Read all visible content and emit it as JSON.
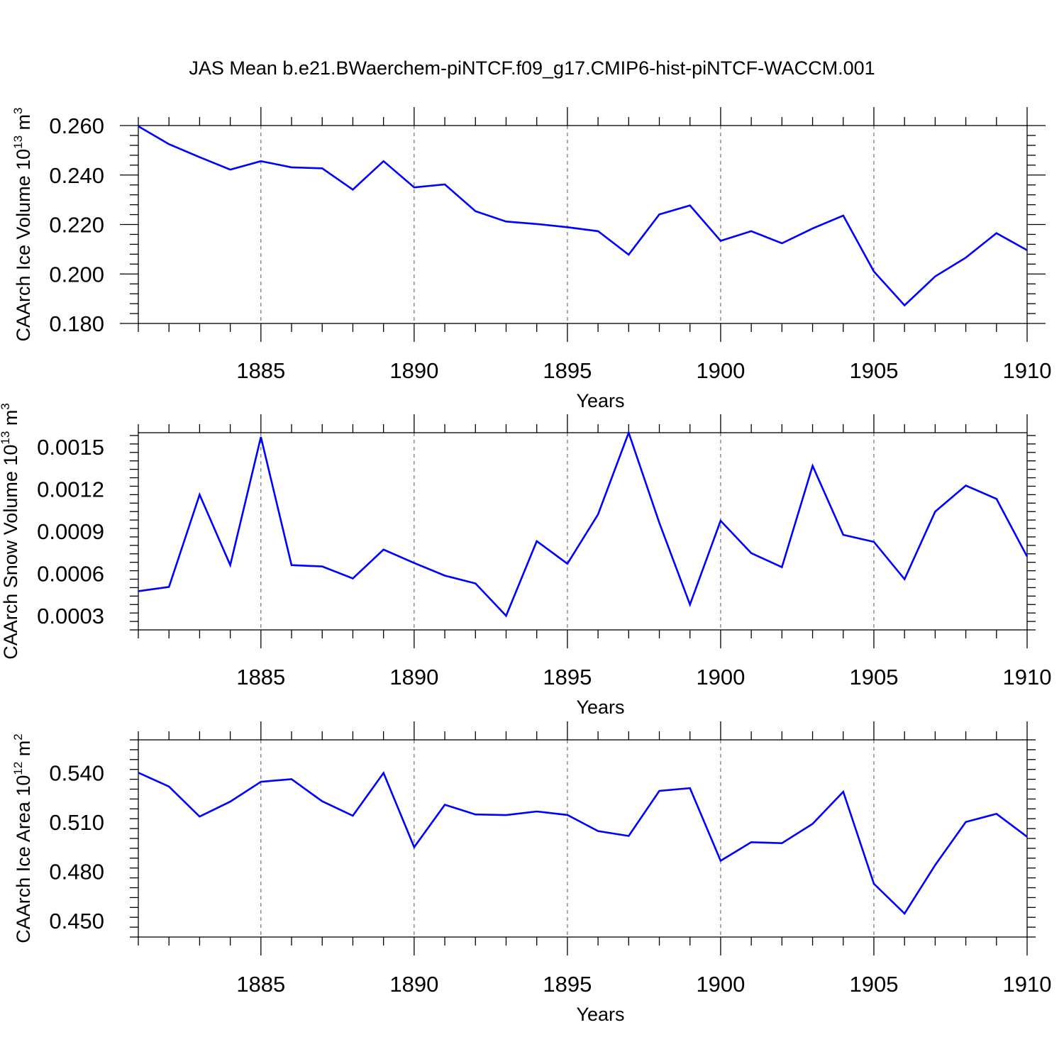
{
  "title": "JAS Mean b.e21.BWaerchem-piNTCF.f09_g17.CMIP6-hist-piNTCF-WACCM.001",
  "colors": {
    "line": "#0000ff",
    "axis": "#000000",
    "grid": "#555555"
  },
  "chart_data": [
    {
      "type": "line",
      "ylabel": {
        "main": "CAArch Ice Volume 10",
        "exp": "13",
        "unit": " m",
        "unit_exp": "3"
      },
      "xlabel": "Years",
      "xlim": [
        1881,
        1910
      ],
      "ylim": [
        0.18,
        0.26
      ],
      "y_ticks": [
        0.18,
        0.2,
        0.22,
        0.24,
        0.26
      ],
      "y_tick_labels": [
        "0.180",
        "0.200",
        "0.220",
        "0.240",
        "0.260"
      ],
      "x_ticks": [
        1885,
        1890,
        1895,
        1900,
        1905,
        1910
      ],
      "x_tick_labels": [
        "1885",
        "1890",
        "1895",
        "1900",
        "1905",
        "1910"
      ],
      "grid": "dashed vertical at major x ticks",
      "x": [
        1881,
        1882,
        1883,
        1884,
        1885,
        1886,
        1887,
        1888,
        1889,
        1890,
        1891,
        1892,
        1893,
        1894,
        1895,
        1896,
        1897,
        1898,
        1899,
        1900,
        1901,
        1902,
        1903,
        1904,
        1905,
        1906,
        1907,
        1908,
        1909,
        1910
      ],
      "values": [
        0.2597,
        0.2525,
        0.2472,
        0.2422,
        0.2456,
        0.2431,
        0.2427,
        0.2341,
        0.2456,
        0.235,
        0.2362,
        0.2254,
        0.2212,
        0.2202,
        0.2189,
        0.2173,
        0.2078,
        0.2241,
        0.2277,
        0.2134,
        0.2173,
        0.2124,
        0.2184,
        0.2236,
        0.201,
        0.1873,
        0.199,
        0.2066,
        0.2165,
        0.2096
      ]
    },
    {
      "type": "line",
      "ylabel": {
        "main": "CAArch Snow Volume 10",
        "exp": "13",
        "unit": " m",
        "unit_exp": "3"
      },
      "xlabel": "Years",
      "xlim": [
        1881,
        1910
      ],
      "ylim": [
        0.0002,
        0.0016
      ],
      "y_ticks": [
        0.0003,
        0.0006,
        0.0009,
        0.0012,
        0.0015
      ],
      "y_tick_labels": [
        "0.0003",
        "0.0006",
        "0.0009",
        "0.0012",
        "0.0015"
      ],
      "x_ticks": [
        1885,
        1890,
        1895,
        1900,
        1905,
        1910
      ],
      "x_tick_labels": [
        "1885",
        "1890",
        "1895",
        "1900",
        "1905",
        "1910"
      ],
      "grid": "dashed vertical at major x ticks",
      "x": [
        1881,
        1882,
        1883,
        1884,
        1885,
        1886,
        1887,
        1888,
        1889,
        1890,
        1891,
        1892,
        1893,
        1894,
        1895,
        1896,
        1897,
        1898,
        1899,
        1900,
        1901,
        1902,
        1903,
        1904,
        1905,
        1906,
        1907,
        1908,
        1909,
        1910
      ],
      "values": [
        0.000475,
        0.000505,
        0.00116,
        0.00066,
        0.00157,
        0.00066,
        0.00065,
        0.000565,
        0.00077,
        0.000675,
        0.000585,
        0.00053,
        0.0003,
        0.00083,
        0.00067,
        0.00102,
        0.0016,
        0.00096,
        0.00038,
        0.000975,
        0.000745,
        0.000645,
        0.001365,
        0.000875,
        0.000825,
        0.00056,
        0.00104,
        0.001225,
        0.00113,
        0.00072
      ]
    },
    {
      "type": "line",
      "ylabel": {
        "main": "CAArch Ice Area 10",
        "exp": "12",
        "unit": " m",
        "unit_exp": "2"
      },
      "xlabel": "Years",
      "xlim": [
        1881,
        1910
      ],
      "ylim": [
        0.44,
        0.56
      ],
      "y_ticks": [
        0.45,
        0.48,
        0.51,
        0.54
      ],
      "y_tick_labels": [
        "0.450",
        "0.480",
        "0.510",
        "0.540"
      ],
      "x_ticks": [
        1885,
        1890,
        1895,
        1900,
        1905,
        1910
      ],
      "x_tick_labels": [
        "1885",
        "1890",
        "1895",
        "1900",
        "1905",
        "1910"
      ],
      "grid": "dashed vertical at major x ticks",
      "x": [
        1881,
        1882,
        1883,
        1884,
        1885,
        1886,
        1887,
        1888,
        1889,
        1890,
        1891,
        1892,
        1893,
        1894,
        1895,
        1896,
        1897,
        1898,
        1899,
        1900,
        1901,
        1902,
        1903,
        1904,
        1905,
        1906,
        1907,
        1908,
        1909,
        1910
      ],
      "values": [
        0.54,
        0.5316,
        0.5133,
        0.5224,
        0.5345,
        0.5361,
        0.5226,
        0.5138,
        0.5399,
        0.4947,
        0.5205,
        0.5146,
        0.5142,
        0.5164,
        0.5143,
        0.5045,
        0.5015,
        0.5289,
        0.5306,
        0.4864,
        0.4977,
        0.4971,
        0.5089,
        0.5284,
        0.4724,
        0.4543,
        0.4838,
        0.51,
        0.515,
        0.501
      ]
    }
  ]
}
